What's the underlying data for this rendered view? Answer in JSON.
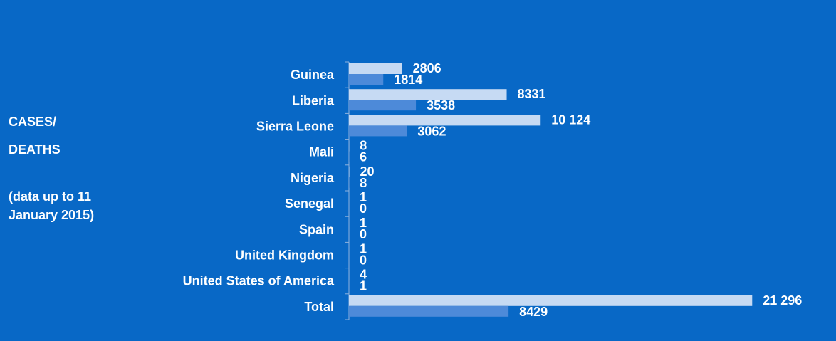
{
  "side_panel": {
    "title_line1": "CASES/",
    "title_line2": "DEATHS",
    "note_line1": "(data up to 11",
    "note_line2": "January 2015)"
  },
  "colors": {
    "background": "#0868c6",
    "cases_bar": "#c6daf3",
    "deaths_bar": "#4d8ad9",
    "axis": "#8fb2de",
    "text": "#ffffff"
  },
  "chart_data": {
    "type": "bar",
    "orientation": "horizontal",
    "categories": [
      "Guinea",
      "Liberia",
      "Sierra Leone",
      "Mali",
      "Nigeria",
      "Senegal",
      "Spain",
      "United Kingdom",
      "United States of America",
      "Total"
    ],
    "series": [
      {
        "values": [
          2806,
          8331,
          10124,
          8,
          20,
          1,
          1,
          1,
          4,
          21296
        ],
        "labels": [
          "2806",
          "8331",
          "10 124",
          "8",
          "20",
          "1",
          "1",
          "1",
          "4",
          "21 296"
        ]
      },
      {
        "values": [
          1814,
          3538,
          3062,
          6,
          8,
          0,
          0,
          0,
          1,
          8429
        ],
        "labels": [
          "1814",
          "3538",
          "3062",
          "6",
          "8",
          "0",
          "0",
          "0",
          "1",
          "8429"
        ]
      }
    ],
    "xlim": [
      0,
      22000
    ],
    "grid": false,
    "legend": "none"
  }
}
